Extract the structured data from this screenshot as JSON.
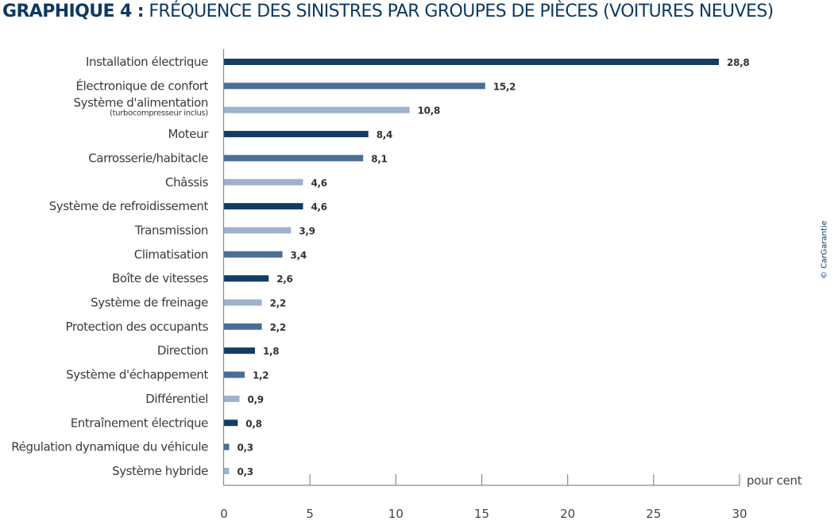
{
  "title": {
    "bold": "GRAPHIQUE 4 :",
    "light": "FRÉQUENCE DES SINISTRES PAR GROUPES DE PIÈCES (VOITURES NEUVES)"
  },
  "credit": "© CarGarantie",
  "colors": {
    "dark": "#133d63",
    "medium": "#4a6e96",
    "light": "#9fb1cc",
    "axis": "#8a8a8a"
  },
  "chart_data": {
    "type": "bar",
    "orientation": "horizontal",
    "title": "GRAPHIQUE 4 : FRÉQUENCE DES SINISTRES PAR GROUPES DE PIÈCES (VOITURES NEUVES)",
    "xlabel": "pour cent",
    "ylabel": "",
    "xlim": [
      0,
      30
    ],
    "xticks": [
      0,
      5,
      10,
      15,
      20,
      25,
      30
    ],
    "grid": false,
    "legend": "none",
    "categories": [
      {
        "label": "Installation électrique",
        "sub": "",
        "value": 28.8,
        "display": "28,8",
        "shade": "dark"
      },
      {
        "label": "Électronique de confort",
        "sub": "",
        "value": 15.2,
        "display": "15,2",
        "shade": "medium"
      },
      {
        "label": "Système d'alimentation",
        "sub": "(turbocompresseur inclus)",
        "value": 10.8,
        "display": "10,8",
        "shade": "light"
      },
      {
        "label": "Moteur",
        "sub": "",
        "value": 8.4,
        "display": "8,4",
        "shade": "dark"
      },
      {
        "label": "Carrosserie/habitacle",
        "sub": "",
        "value": 8.1,
        "display": "8,1",
        "shade": "medium"
      },
      {
        "label": "Châssis",
        "sub": "",
        "value": 4.6,
        "display": "4,6",
        "shade": "light"
      },
      {
        "label": "Système de refroidissement",
        "sub": "",
        "value": 4.6,
        "display": "4,6",
        "shade": "dark"
      },
      {
        "label": "Transmission",
        "sub": "",
        "value": 3.9,
        "display": "3,9",
        "shade": "light"
      },
      {
        "label": "Climatisation",
        "sub": "",
        "value": 3.4,
        "display": "3,4",
        "shade": "medium"
      },
      {
        "label": "Boîte de vitesses",
        "sub": "",
        "value": 2.6,
        "display": "2,6",
        "shade": "dark"
      },
      {
        "label": "Système de freinage",
        "sub": "",
        "value": 2.2,
        "display": "2,2",
        "shade": "light"
      },
      {
        "label": "Protection des occupants",
        "sub": "",
        "value": 2.2,
        "display": "2,2",
        "shade": "medium"
      },
      {
        "label": "Direction",
        "sub": "",
        "value": 1.8,
        "display": "1,8",
        "shade": "dark"
      },
      {
        "label": "Système d'échappement",
        "sub": "",
        "value": 1.2,
        "display": "1,2",
        "shade": "medium"
      },
      {
        "label": "Différentiel",
        "sub": "",
        "value": 0.9,
        "display": "0,9",
        "shade": "light"
      },
      {
        "label": "Entraînement électrique",
        "sub": "",
        "value": 0.8,
        "display": "0,8",
        "shade": "dark"
      },
      {
        "label": "Régulation dynamique du véhicule",
        "sub": "",
        "value": 0.3,
        "display": "0,3",
        "shade": "medium"
      },
      {
        "label": "Système hybride",
        "sub": "",
        "value": 0.3,
        "display": "0,3",
        "shade": "light"
      }
    ]
  }
}
